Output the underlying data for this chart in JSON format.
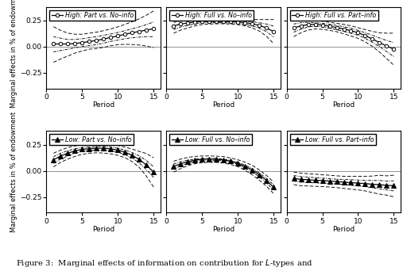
{
  "periods": [
    1,
    2,
    3,
    4,
    5,
    6,
    7,
    8,
    9,
    10,
    11,
    12,
    13,
    14,
    15
  ],
  "subplots": [
    {
      "title": "High: Part vs. No–info",
      "marker": "o",
      "filled": false,
      "row": 0,
      "col": 0,
      "main": [
        0.025,
        0.025,
        0.025,
        0.03,
        0.038,
        0.048,
        0.058,
        0.072,
        0.088,
        0.102,
        0.118,
        0.132,
        0.145,
        0.158,
        0.17
      ],
      "ci_upper1": [
        0.095,
        0.08,
        0.068,
        0.068,
        0.075,
        0.085,
        0.095,
        0.108,
        0.12,
        0.135,
        0.152,
        0.17,
        0.188,
        0.21,
        0.235
      ],
      "ci_lower1": [
        -0.05,
        -0.038,
        -0.025,
        -0.012,
        0.0,
        0.01,
        0.02,
        0.032,
        0.05,
        0.062,
        0.075,
        0.085,
        0.09,
        0.095,
        0.095
      ],
      "ci_upper2": [
        0.19,
        0.155,
        0.128,
        0.118,
        0.118,
        0.128,
        0.138,
        0.152,
        0.168,
        0.188,
        0.212,
        0.238,
        0.265,
        0.3,
        0.34
      ],
      "ci_lower2": [
        -0.15,
        -0.118,
        -0.09,
        -0.062,
        -0.042,
        -0.025,
        -0.018,
        -0.008,
        0.008,
        0.018,
        0.022,
        0.02,
        0.015,
        0.005,
        -0.01
      ],
      "ylim": [
        -0.4,
        0.38
      ],
      "yticks": [
        -0.25,
        0.0,
        0.25
      ],
      "show_ylabel": true
    },
    {
      "title": "High: Full vs. No–info",
      "marker": "o",
      "filled": false,
      "row": 0,
      "col": 1,
      "main": [
        0.198,
        0.215,
        0.225,
        0.235,
        0.238,
        0.24,
        0.24,
        0.24,
        0.238,
        0.235,
        0.228,
        0.218,
        0.202,
        0.178,
        0.142
      ],
      "ci_upper1": [
        0.232,
        0.242,
        0.248,
        0.252,
        0.252,
        0.252,
        0.252,
        0.252,
        0.25,
        0.248,
        0.242,
        0.238,
        0.228,
        0.215,
        0.195
      ],
      "ci_lower1": [
        0.162,
        0.188,
        0.202,
        0.218,
        0.225,
        0.228,
        0.228,
        0.228,
        0.225,
        0.222,
        0.212,
        0.198,
        0.175,
        0.142,
        0.09
      ],
      "ci_upper2": [
        0.268,
        0.272,
        0.272,
        0.27,
        0.268,
        0.265,
        0.262,
        0.262,
        0.26,
        0.26,
        0.258,
        0.258,
        0.258,
        0.258,
        0.258
      ],
      "ci_lower2": [
        0.128,
        0.158,
        0.178,
        0.198,
        0.21,
        0.215,
        0.218,
        0.218,
        0.215,
        0.21,
        0.198,
        0.178,
        0.148,
        0.098,
        0.028
      ],
      "ylim": [
        -0.4,
        0.38
      ],
      "yticks": [
        -0.25,
        0.0,
        0.25
      ],
      "show_ylabel": false
    },
    {
      "title": "High: Full vs. Part–info",
      "marker": "o",
      "filled": false,
      "row": 0,
      "col": 2,
      "main": [
        0.178,
        0.198,
        0.21,
        0.212,
        0.205,
        0.195,
        0.182,
        0.168,
        0.152,
        0.132,
        0.105,
        0.072,
        0.038,
        0.005,
        -0.025
      ],
      "ci_upper1": [
        0.215,
        0.228,
        0.232,
        0.228,
        0.222,
        0.212,
        0.202,
        0.19,
        0.175,
        0.155,
        0.132,
        0.108,
        0.082,
        0.058,
        0.038
      ],
      "ci_lower1": [
        0.138,
        0.165,
        0.188,
        0.195,
        0.188,
        0.175,
        0.162,
        0.145,
        0.128,
        0.108,
        0.078,
        0.04,
        0.0,
        -0.048,
        -0.095
      ],
      "ci_upper2": [
        0.258,
        0.262,
        0.258,
        0.252,
        0.242,
        0.232,
        0.222,
        0.212,
        0.198,
        0.18,
        0.162,
        0.145,
        0.132,
        0.128,
        0.128
      ],
      "ci_lower2": [
        0.095,
        0.132,
        0.158,
        0.168,
        0.165,
        0.155,
        0.142,
        0.122,
        0.102,
        0.078,
        0.045,
        0.002,
        -0.052,
        -0.115,
        -0.178
      ],
      "ylim": [
        -0.4,
        0.38
      ],
      "yticks": [
        -0.25,
        0.0,
        0.25
      ],
      "show_ylabel": false
    },
    {
      "title": "Low: Part vs. No–info",
      "marker": "^",
      "filled": true,
      "row": 1,
      "col": 0,
      "main": [
        0.105,
        0.142,
        0.168,
        0.19,
        0.205,
        0.212,
        0.215,
        0.215,
        0.21,
        0.198,
        0.178,
        0.148,
        0.108,
        0.055,
        -0.012
      ],
      "ci_upper1": [
        0.135,
        0.168,
        0.192,
        0.21,
        0.222,
        0.228,
        0.232,
        0.232,
        0.228,
        0.215,
        0.198,
        0.175,
        0.142,
        0.098,
        0.038
      ],
      "ci_lower1": [
        0.072,
        0.112,
        0.142,
        0.168,
        0.185,
        0.195,
        0.198,
        0.198,
        0.192,
        0.178,
        0.155,
        0.122,
        0.075,
        0.01,
        -0.062
      ],
      "ci_upper2": [
        0.168,
        0.198,
        0.222,
        0.238,
        0.248,
        0.252,
        0.255,
        0.255,
        0.252,
        0.242,
        0.225,
        0.208,
        0.185,
        0.165,
        0.125
      ],
      "ci_lower2": [
        0.038,
        0.082,
        0.112,
        0.138,
        0.158,
        0.168,
        0.172,
        0.17,
        0.162,
        0.148,
        0.125,
        0.088,
        0.032,
        -0.052,
        -0.155
      ],
      "ylim": [
        -0.4,
        0.38
      ],
      "yticks": [
        -0.25,
        0.0,
        0.25
      ],
      "show_ylabel": true
    },
    {
      "title": "Low: Full vs. No–info",
      "marker": "^",
      "filled": true,
      "row": 1,
      "col": 1,
      "main": [
        0.042,
        0.068,
        0.088,
        0.102,
        0.11,
        0.112,
        0.11,
        0.105,
        0.092,
        0.072,
        0.042,
        0.008,
        -0.038,
        -0.092,
        -0.158
      ],
      "ci_upper1": [
        0.065,
        0.088,
        0.102,
        0.112,
        0.118,
        0.12,
        0.118,
        0.112,
        0.098,
        0.08,
        0.055,
        0.022,
        -0.022,
        -0.072,
        -0.135
      ],
      "ci_lower1": [
        0.018,
        0.048,
        0.072,
        0.09,
        0.1,
        0.102,
        0.1,
        0.095,
        0.082,
        0.062,
        0.028,
        -0.01,
        -0.058,
        -0.115,
        -0.185
      ],
      "ci_upper2": [
        0.092,
        0.112,
        0.128,
        0.138,
        0.142,
        0.142,
        0.14,
        0.135,
        0.122,
        0.105,
        0.082,
        0.052,
        0.008,
        -0.045,
        -0.108
      ],
      "ci_lower2": [
        -0.012,
        0.022,
        0.05,
        0.068,
        0.078,
        0.082,
        0.08,
        0.075,
        0.06,
        0.04,
        0.005,
        -0.038,
        -0.09,
        -0.148,
        -0.218
      ],
      "ylim": [
        -0.4,
        0.38
      ],
      "yticks": [
        -0.25,
        0.0,
        0.25
      ],
      "show_ylabel": false
    },
    {
      "title": "Low: Full vs. Part–info",
      "marker": "^",
      "filled": true,
      "row": 1,
      "col": 2,
      "main": [
        -0.072,
        -0.082,
        -0.085,
        -0.09,
        -0.092,
        -0.098,
        -0.102,
        -0.108,
        -0.112,
        -0.118,
        -0.122,
        -0.128,
        -0.132,
        -0.138,
        -0.142
      ],
      "ci_upper1": [
        -0.045,
        -0.055,
        -0.06,
        -0.065,
        -0.07,
        -0.075,
        -0.08,
        -0.082,
        -0.085,
        -0.088,
        -0.09,
        -0.092,
        -0.092,
        -0.098,
        -0.095
      ],
      "ci_lower1": [
        -0.098,
        -0.108,
        -0.112,
        -0.115,
        -0.118,
        -0.122,
        -0.125,
        -0.132,
        -0.138,
        -0.145,
        -0.152,
        -0.162,
        -0.172,
        -0.182,
        -0.192
      ],
      "ci_upper2": [
        -0.012,
        -0.022,
        -0.028,
        -0.032,
        -0.038,
        -0.042,
        -0.048,
        -0.052,
        -0.052,
        -0.052,
        -0.052,
        -0.05,
        -0.042,
        -0.048,
        -0.042
      ],
      "ci_lower2": [
        -0.132,
        -0.142,
        -0.145,
        -0.148,
        -0.15,
        -0.155,
        -0.16,
        -0.168,
        -0.175,
        -0.182,
        -0.192,
        -0.208,
        -0.222,
        -0.232,
        -0.248
      ],
      "ylim": [
        -0.4,
        0.38
      ],
      "yticks": [
        -0.25,
        0.0,
        0.25
      ],
      "show_ylabel": false
    }
  ],
  "xlabel": "Period",
  "ylabel": "Marginal effects in % of endowment",
  "fig_caption": "Figure 3:  Marginal effects of information on contribution for $\\mathit{L}$-types and",
  "background_color": "white",
  "legend_fontsize": 5.8,
  "axis_fontsize": 6.5,
  "tick_fontsize": 6.5
}
